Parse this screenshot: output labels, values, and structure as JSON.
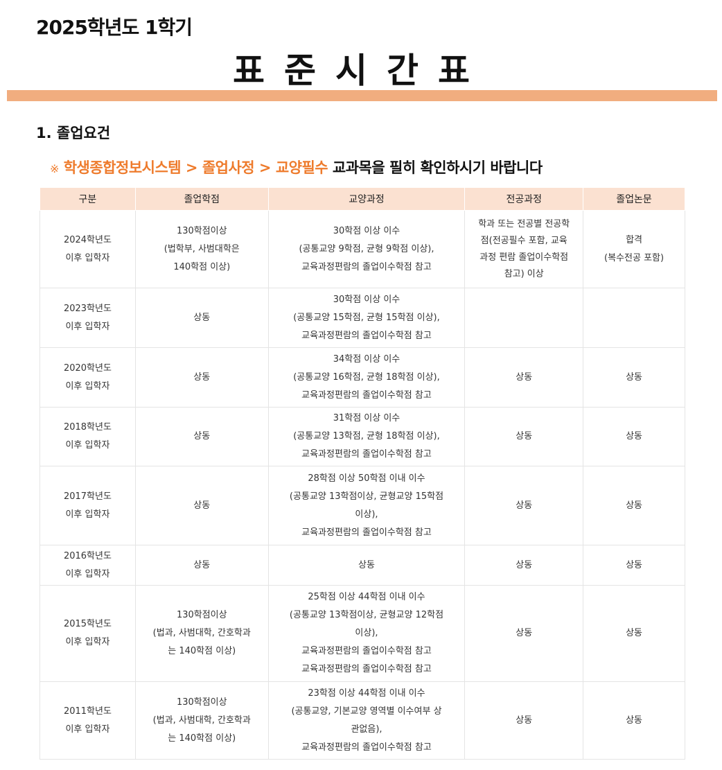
{
  "header": {
    "year": "2025학년도 1학기",
    "title": "표준시간표"
  },
  "section": {
    "heading": "1. 졸업요건",
    "note_mark": "※",
    "note_highlight": "학생종합정보시스템 > 졸업사정 > 교양필수",
    "note_rest": "교과목을 필히 확인하시기 바랍니다"
  },
  "table": {
    "columns": [
      "구분",
      "졸업학점",
      "교양과정",
      "전공과정",
      "졸업논문"
    ],
    "rows": [
      [
        "2024학년도\n이후 입학자",
        "130학점이상\n(법학부, 사범대학은\n140학점 이상)",
        "30학점 이상 이수\n(공통교양 9학점, 균형 9학점 이상),\n교육과정편람의 졸업이수학점 참고",
        "학과 또는 전공별 전공학\n점(전공필수 포함, 교육\n과정 편람 졸업이수학점\n참고) 이상",
        "합격\n(복수전공 포함)"
      ],
      [
        "2023학년도\n이후 입학자",
        "상동",
        "30학점 이상 이수\n(공통교양 15학점, 균형 15학점 이상),\n교육과정편람의 졸업이수학점 참고",
        "",
        ""
      ],
      [
        "2020학년도\n이후 입학자",
        "상동",
        "34학점 이상 이수\n(공통교양 16학점, 균형 18학점 이상),\n교육과정편람의 졸업이수학점 참고",
        "상동",
        "상동"
      ],
      [
        "2018학년도\n이후 입학자",
        "상동",
        "31학점 이상 이수\n(공통교양 13학점, 균형 18학점 이상),\n교육과정편람의 졸업이수학점 참고",
        "상동",
        "상동"
      ],
      [
        "2017학년도\n이후 입학자",
        "상동",
        "28학점 이상 50학점 이내 이수\n(공통교양 13학점이상, 균형교양 15학점\n이상),\n교육과정편람의 졸업이수학점 참고",
        "상동",
        "상동"
      ],
      [
        "2016학년도\n이후 입학자",
        "상동",
        "상동",
        "상동",
        "상동"
      ],
      [
        "2015학년도\n이후 입학자",
        "130학점이상\n(법과, 사범대학, 간호학과\n는 140학점 이상)",
        "25학점 이상 44학점 이내 이수\n(공통교양 13학점이상, 균형교양 12학점\n이상),\n교육과정편람의 졸업이수학점 참고\n교육과정편람의 졸업이수학점 참고",
        "상동",
        "상동"
      ],
      [
        "2011학년도\n이후 입학자",
        "130학점이상\n(법과, 사범대학, 간호학과\n는 140학점 이상)",
        "23학점 이상 44학점 이내 이수\n(공통교양, 기본교양 영역별 이수여부 상\n관없음),\n교육과정편람의 졸업이수학점 참고",
        "상동",
        "상동"
      ]
    ]
  }
}
